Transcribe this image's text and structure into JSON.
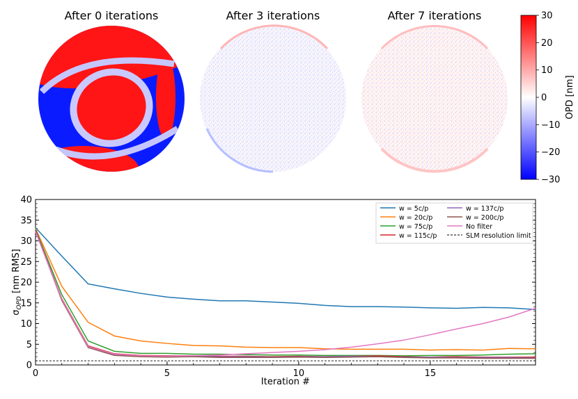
{
  "maps": {
    "titles": [
      "After 0 iterations",
      "After 3 iterations",
      "After 7 iterations"
    ]
  },
  "colorbar": {
    "label": "OPD [nm]",
    "ticks": [
      "30",
      "20",
      "10",
      "0",
      "−10",
      "−20",
      "−30"
    ],
    "min": -30,
    "max": 30,
    "color_low": "#0000ff",
    "color_mid": "#ffffff",
    "color_high": "#ff0000"
  },
  "chart_data": {
    "type": "line",
    "xlabel": "Iteration #",
    "ylabel": "σOPD [nm RMS]",
    "xlim": [
      0,
      19
    ],
    "ylim": [
      0,
      40
    ],
    "x_ticks": [
      "0",
      "5",
      "10",
      "15"
    ],
    "y_ticks": [
      "0",
      "5",
      "10",
      "15",
      "20",
      "25",
      "30",
      "35",
      "40"
    ],
    "x": [
      0,
      1,
      2,
      3,
      4,
      5,
      6,
      7,
      8,
      9,
      10,
      11,
      12,
      13,
      14,
      15,
      16,
      17,
      18,
      19
    ],
    "legend_position": "top-right",
    "series": [
      {
        "name": "w = 5c/p",
        "color": "#1f77b4",
        "values": [
          33.2,
          26.3,
          19.6,
          18.4,
          17.3,
          16.4,
          15.9,
          15.5,
          15.5,
          15.2,
          14.9,
          14.4,
          14.1,
          14.1,
          14.0,
          13.8,
          13.7,
          13.9,
          13.8,
          13.4
        ]
      },
      {
        "name": "w = 20c/p",
        "color": "#ff7f0e",
        "values": [
          33.0,
          19.0,
          10.3,
          7.0,
          5.8,
          5.2,
          4.7,
          4.6,
          4.3,
          4.2,
          4.2,
          3.9,
          3.8,
          3.8,
          3.8,
          3.6,
          3.7,
          3.6,
          4.0,
          3.9
        ]
      },
      {
        "name": "w = 75c/p",
        "color": "#2ca02c",
        "values": [
          32.8,
          17.0,
          5.8,
          3.3,
          2.8,
          2.8,
          2.6,
          2.6,
          2.5,
          2.4,
          2.4,
          2.3,
          2.3,
          2.3,
          2.2,
          2.3,
          2.3,
          2.4,
          2.6,
          2.7
        ]
      },
      {
        "name": "w = 115c/p",
        "color": "#d62728",
        "values": [
          32.6,
          16.0,
          4.6,
          2.7,
          2.3,
          2.2,
          2.2,
          2.1,
          2.1,
          2.0,
          2.1,
          2.0,
          2.1,
          2.2,
          2.0,
          1.9,
          2.0,
          1.9,
          1.9,
          1.9
        ]
      },
      {
        "name": "w = 137c/p",
        "color": "#9467bd",
        "values": [
          32.5,
          15.8,
          4.4,
          2.5,
          2.1,
          2.0,
          2.1,
          2.0,
          2.0,
          1.9,
          2.0,
          2.0,
          2.1,
          2.0,
          1.9,
          1.9,
          1.8,
          1.8,
          1.8,
          1.7
        ]
      },
      {
        "name": "w = 200c/p",
        "color": "#8c564b",
        "values": [
          32.4,
          15.6,
          4.2,
          2.3,
          2.0,
          1.9,
          2.0,
          1.8,
          1.8,
          1.8,
          1.9,
          1.8,
          1.9,
          2.0,
          1.8,
          1.7,
          1.7,
          1.6,
          1.6,
          1.6
        ]
      },
      {
        "name": "No filter",
        "color": "#e377c2",
        "values": [
          32.2,
          15.9,
          4.4,
          2.6,
          2.2,
          2.1,
          2.2,
          2.4,
          2.7,
          3.0,
          3.3,
          3.7,
          4.3,
          5.1,
          6.0,
          7.3,
          8.7,
          10.0,
          11.6,
          13.7
        ]
      }
    ],
    "reference_lines": [
      {
        "name": "SLM resolution limit",
        "value": 1.0,
        "color": "#000000",
        "style": "dashed"
      }
    ]
  }
}
